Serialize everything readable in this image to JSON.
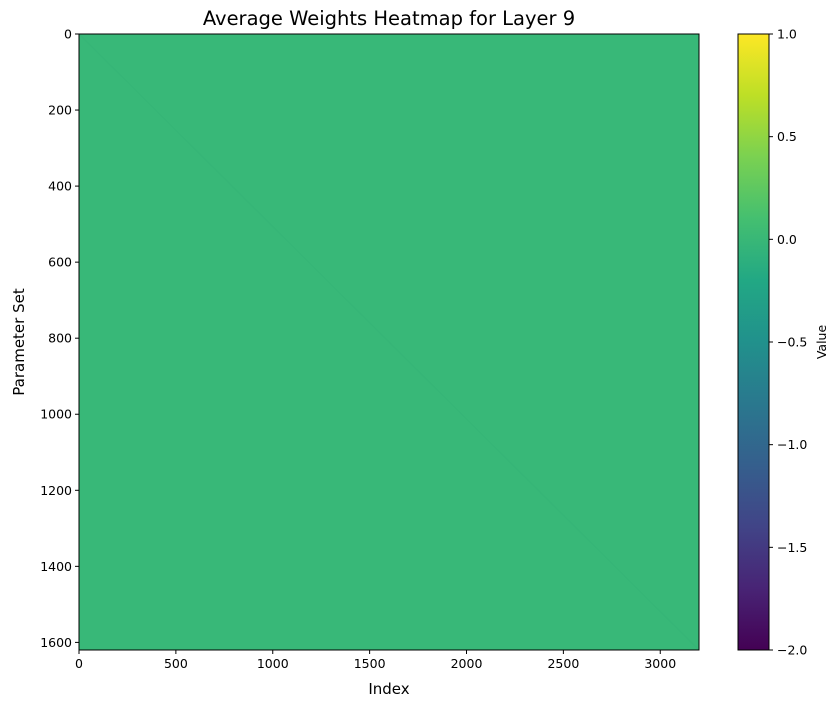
{
  "chart_data": {
    "type": "heatmap",
    "title": "Average Weights Heatmap for Layer 9",
    "xlabel": "Index",
    "ylabel": "Parameter Set",
    "xlim": [
      0,
      3200
    ],
    "ylim": [
      1620,
      0
    ],
    "x_ticks": [
      0,
      500,
      1000,
      1500,
      2000,
      2500,
      3000
    ],
    "y_ticks": [
      0,
      200,
      400,
      600,
      800,
      1000,
      1200,
      1400,
      1600
    ],
    "colormap": "viridis",
    "fill_value": 0.1,
    "fill_color": "#38b878",
    "diagonal_color": "#36b577",
    "colorbar": {
      "label": "Value",
      "min": -2.0,
      "max": 1.0,
      "ticks": [
        1.0,
        0.5,
        0.0,
        -0.5,
        -1.0,
        -1.5,
        -2.0
      ],
      "tick_labels": [
        "1.0",
        "0.5",
        "0.0",
        "−0.5",
        "−1.0",
        "−1.5",
        "−2.0"
      ]
    }
  }
}
